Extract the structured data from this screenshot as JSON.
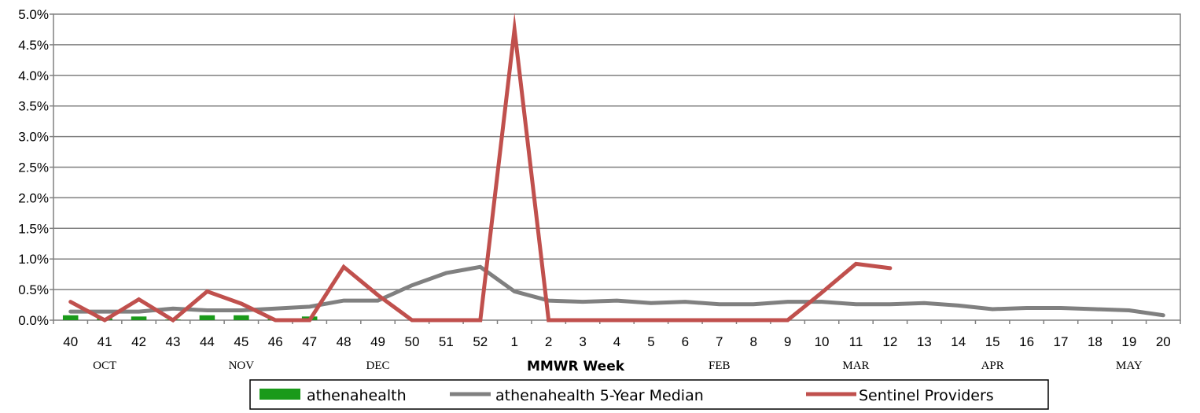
{
  "chart_data": {
    "type": "line",
    "title": "",
    "xlabel": "MMWR Week",
    "ylabel": "",
    "ylim": [
      0,
      5
    ],
    "y_ticks": [
      "0.0%",
      "0.5%",
      "1.0%",
      "1.5%",
      "2.0%",
      "2.5%",
      "3.0%",
      "3.5%",
      "4.0%",
      "4.5%",
      "5.0%"
    ],
    "y_tick_values": [
      0,
      0.5,
      1,
      1.5,
      2,
      2.5,
      3,
      3.5,
      4,
      4.5,
      5
    ],
    "grid": true,
    "legend_position": "bottom",
    "categories": [
      "40",
      "41",
      "42",
      "43",
      "44",
      "45",
      "46",
      "47",
      "48",
      "49",
      "50",
      "51",
      "52",
      "1",
      "2",
      "3",
      "4",
      "5",
      "6",
      "7",
      "8",
      "9",
      "10",
      "11",
      "12",
      "13",
      "14",
      "15",
      "16",
      "17",
      "18",
      "19",
      "20"
    ],
    "months": [
      {
        "label": "OCT",
        "category": "41"
      },
      {
        "label": "NOV",
        "category": "45"
      },
      {
        "label": "DEC",
        "category": "49"
      },
      {
        "label": "FEB",
        "category": "7"
      },
      {
        "label": "MAR",
        "category": "11"
      },
      {
        "label": "APR",
        "category": "15"
      },
      {
        "label": "MAY",
        "category": "19"
      }
    ],
    "series": [
      {
        "name": "athenahealth",
        "kind": "bar",
        "color": "#1a9a1a",
        "values": [
          0.08,
          0.03,
          0.06,
          0.01,
          0.08,
          0.08,
          0.02,
          0.06,
          null,
          null,
          null,
          null,
          null,
          null,
          null,
          null,
          null,
          null,
          null,
          null,
          null,
          null,
          null,
          null,
          null,
          null,
          null,
          null,
          null,
          null,
          null,
          null,
          null
        ]
      },
      {
        "name": "athenahealth 5-Year Median",
        "kind": "line",
        "color": "#808080",
        "values": [
          0.14,
          0.14,
          0.14,
          0.19,
          0.16,
          0.16,
          0.19,
          0.22,
          0.32,
          0.32,
          0.57,
          0.77,
          0.87,
          0.47,
          0.32,
          0.3,
          0.32,
          0.28,
          0.3,
          0.26,
          0.26,
          0.3,
          0.3,
          0.26,
          0.26,
          0.28,
          0.24,
          0.18,
          0.2,
          0.2,
          0.18,
          0.16,
          0.08
        ]
      },
      {
        "name": "Sentinel Providers",
        "kind": "line",
        "color": "#c0504d",
        "values": [
          0.3,
          0.0,
          0.34,
          0.0,
          0.47,
          0.27,
          0.0,
          0.0,
          0.87,
          0.41,
          0.0,
          0.0,
          0.0,
          4.75,
          0.0,
          0.0,
          0.0,
          0.0,
          0.0,
          0.0,
          0.0,
          0.0,
          0.45,
          0.92,
          0.85,
          null,
          null,
          null,
          null,
          null,
          null,
          null,
          null
        ]
      }
    ]
  }
}
